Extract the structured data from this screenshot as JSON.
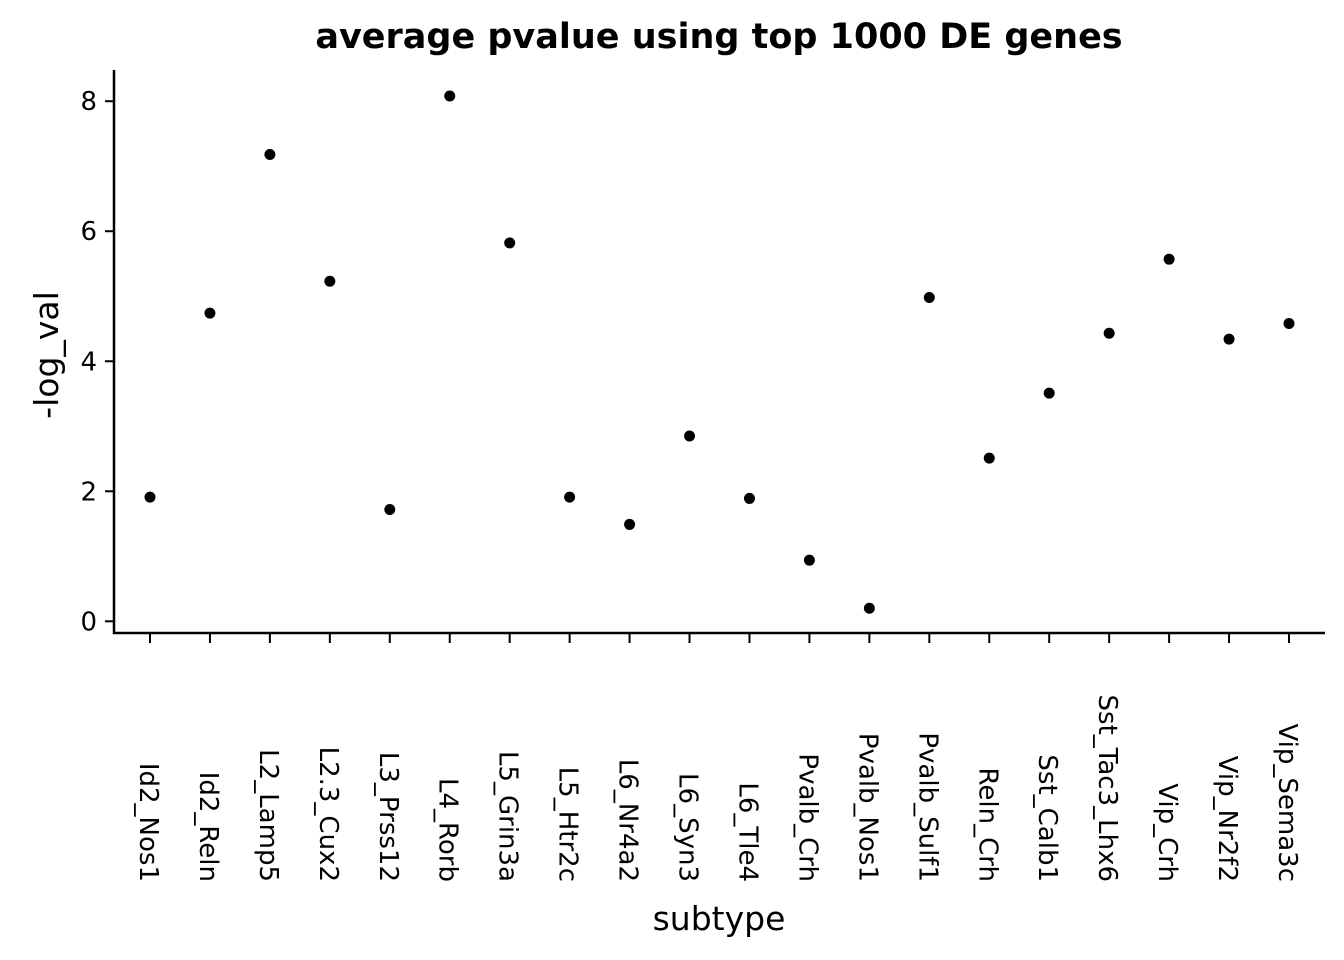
{
  "chart_data": {
    "type": "scatter",
    "title": "average pvalue using top 1000 DE genes",
    "xlabel": "subtype",
    "ylabel": "-log_val",
    "categories": [
      "Id2_Nos1",
      "Id2_Reln",
      "L2_Lamp5",
      "L2.3_Cux2",
      "L3_Prss12",
      "L4_Rorb",
      "L5_Grin3a",
      "L5_Htr2c",
      "L6_Nr4a2",
      "L6_Syn3",
      "L6_Tle4",
      "Pvalb_Crh",
      "Pvalb_Nos1",
      "Pvalb_Sulf1",
      "Reln_Crh",
      "Sst_Calb1",
      "Sst_Tac3_Lhx6",
      "Vip_Crh",
      "Vip_Nr2f2",
      "Vip_Sema3c"
    ],
    "values": [
      1.91,
      4.74,
      7.18,
      5.23,
      1.72,
      8.08,
      5.82,
      1.91,
      1.49,
      2.85,
      1.89,
      0.94,
      0.2,
      4.98,
      2.51,
      3.51,
      4.43,
      5.57,
      4.34,
      4.58
    ],
    "color": "#000000",
    "ylim": [
      -0.18,
      8.48
    ],
    "yticks": [
      0,
      2,
      4,
      6,
      8
    ]
  }
}
